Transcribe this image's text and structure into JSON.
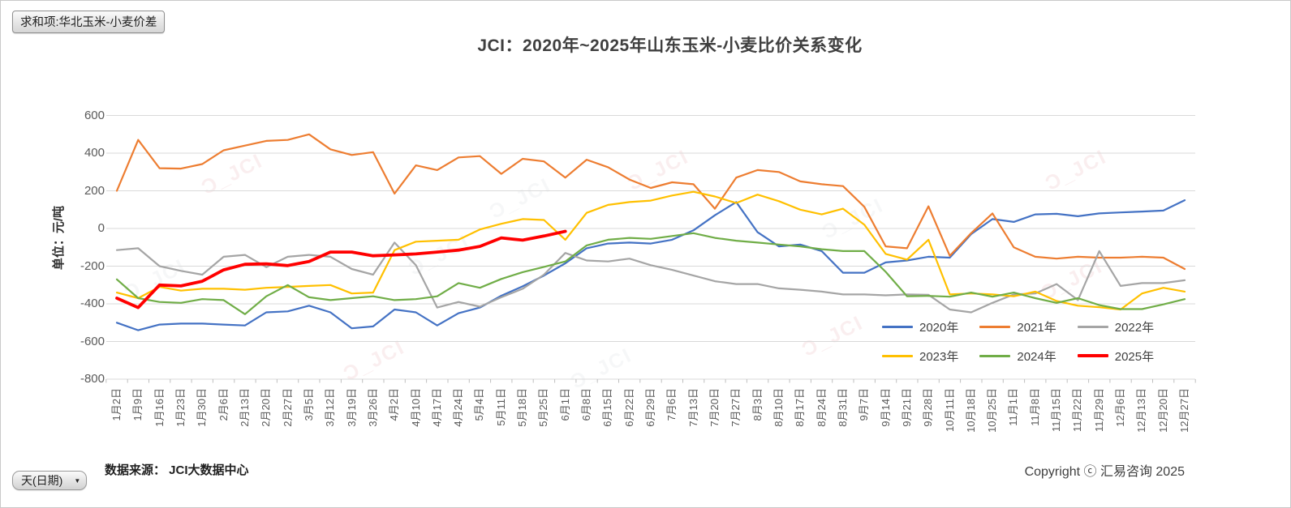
{
  "pivot_button": "求和项:华北玉米-小麦价差",
  "title": "JCI：2020年~2025年山东玉米-小麦比价关系变化",
  "y_axis_title": "单位：元/吨",
  "axis_field_button": {
    "label": "天(日期)",
    "arrow": "▼"
  },
  "data_source": "数据来源： JCI大数据中心",
  "copyright": "Copyright ⓒ 汇易咨询 2025",
  "watermark": "Ɔ_JCI",
  "chart_data": {
    "type": "line",
    "title": "JCI：2020年~2025年山东玉米-小麦比价关系变化",
    "xlabel": "天(日期)",
    "ylabel": "单位：元/吨",
    "ylim": [
      -800,
      600
    ],
    "yticks": [
      600,
      400,
      200,
      0,
      -200,
      -400,
      -600,
      -800
    ],
    "grid": "horizontal",
    "legend_position": "inside-bottom-right",
    "categories": [
      "1月2日",
      "1月9日",
      "1月16日",
      "1月23日",
      "1月30日",
      "2月6日",
      "2月13日",
      "2月20日",
      "2月27日",
      "3月5日",
      "3月12日",
      "3月19日",
      "3月26日",
      "4月2日",
      "4月10日",
      "4月17日",
      "4月24日",
      "5月4日",
      "5月11日",
      "5月18日",
      "5月25日",
      "6月1日",
      "6月8日",
      "6月15日",
      "6月22日",
      "6月29日",
      "7月6日",
      "7月13日",
      "7月20日",
      "7月27日",
      "8月3日",
      "8月10日",
      "8月17日",
      "8月24日",
      "8月31日",
      "9月7日",
      "9月14日",
      "9月21日",
      "9月28日",
      "10月11日",
      "10月18日",
      "10月25日",
      "11月1日",
      "11月8日",
      "11月15日",
      "11月22日",
      "11月29日",
      "12月6日",
      "12月13日",
      "12月20日",
      "12月27日"
    ],
    "series": [
      {
        "name": "2020年",
        "color": "#4472C4",
        "stroke_width": 2.2,
        "values": [
          -500,
          -540,
          -510,
          -505,
          -505,
          -510,
          -515,
          -445,
          -440,
          -410,
          -445,
          -530,
          -520,
          -430,
          -445,
          -515,
          -450,
          -420,
          -357,
          -307,
          -250,
          -185,
          -105,
          -80,
          -75,
          -80,
          -60,
          -10,
          70,
          140,
          -20,
          -95,
          -85,
          -120,
          -235,
          -235,
          -180,
          -170,
          -150,
          -155,
          -30,
          50,
          35,
          75,
          78,
          65,
          80,
          85,
          90,
          95,
          150
        ]
      },
      {
        "name": "2021年",
        "color": "#ED7D31",
        "stroke_width": 2.2,
        "values": [
          200,
          470,
          320,
          318,
          342,
          415,
          440,
          465,
          470,
          500,
          420,
          390,
          405,
          185,
          335,
          310,
          377,
          384,
          290,
          370,
          356,
          270,
          365,
          325,
          260,
          215,
          245,
          235,
          105,
          270,
          310,
          300,
          250,
          235,
          225,
          115,
          -95,
          -105,
          118,
          -145,
          -25,
          80,
          -100,
          -150,
          -160,
          -150,
          -155,
          -155,
          -150,
          -155,
          -215
        ]
      },
      {
        "name": "2022年",
        "color": "#A5A5A5",
        "stroke_width": 2.2,
        "values": [
          -115,
          -105,
          -200,
          -225,
          -245,
          -150,
          -140,
          -205,
          -150,
          -140,
          -150,
          -215,
          -245,
          -75,
          -195,
          -420,
          -390,
          -415,
          -365,
          -320,
          -245,
          -130,
          -170,
          -175,
          -160,
          -195,
          -220,
          -250,
          -280,
          -295,
          -295,
          -318,
          -325,
          -335,
          -350,
          -350,
          -355,
          -350,
          -352,
          -430,
          -445,
          -395,
          -350,
          -345,
          -295,
          -380,
          -120,
          -305,
          -290,
          -290,
          -275
        ]
      },
      {
        "name": "2023年",
        "color": "#FFC000",
        "stroke_width": 2.2,
        "values": [
          -340,
          -370,
          -310,
          -330,
          -320,
          -320,
          -325,
          -315,
          -310,
          -305,
          -300,
          -345,
          -340,
          -115,
          -70,
          -65,
          -60,
          -5,
          25,
          50,
          45,
          -60,
          83,
          125,
          140,
          148,
          175,
          195,
          170,
          135,
          180,
          145,
          100,
          75,
          105,
          20,
          -135,
          -165,
          -60,
          -350,
          -345,
          -350,
          -360,
          -335,
          -385,
          -410,
          -418,
          -430,
          -345,
          -315,
          -335
        ]
      },
      {
        "name": "2024年",
        "color": "#70AD47",
        "stroke_width": 2.2,
        "values": [
          -270,
          -370,
          -390,
          -395,
          -375,
          -380,
          -455,
          -360,
          -300,
          -365,
          -380,
          -370,
          -360,
          -380,
          -375,
          -360,
          -290,
          -315,
          -268,
          -232,
          -204,
          -175,
          -90,
          -60,
          -50,
          -55,
          -40,
          -25,
          -50,
          -65,
          -75,
          -85,
          -95,
          -110,
          -120,
          -120,
          -230,
          -360,
          -358,
          -362,
          -340,
          -362,
          -340,
          -370,
          -395,
          -370,
          -407,
          -428,
          -428,
          -403,
          -375
        ]
      },
      {
        "name": "2025年",
        "color": "#FF0000",
        "stroke_width": 3.8,
        "values": [
          -370,
          -420,
          -300,
          -305,
          -280,
          -220,
          -190,
          -188,
          -197,
          -175,
          -125,
          -125,
          -145,
          -140,
          -135,
          -125,
          -115,
          -95,
          -50,
          -62,
          -40,
          -15,
          null,
          null,
          null,
          null,
          null,
          null,
          null,
          null,
          null,
          null,
          null,
          null,
          null,
          null,
          null,
          null,
          null,
          null,
          null,
          null,
          null,
          null,
          null,
          null,
          null,
          null,
          null,
          null,
          null
        ]
      }
    ]
  }
}
